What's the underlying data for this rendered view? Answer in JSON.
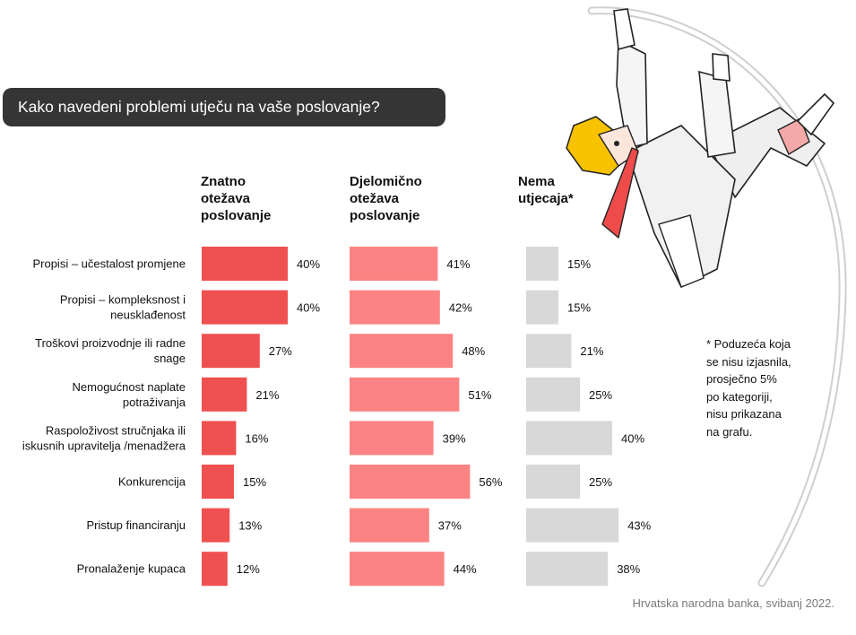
{
  "title": "Kako navedeni problemi utječu na vaše poslovanje?",
  "columns": [
    {
      "lines": [
        "Znatno",
        "otežava",
        "poslovanje"
      ],
      "color": "#ef5050"
    },
    {
      "lines": [
        "Djelomično",
        "otežava",
        "poslovanje"
      ],
      "color": "#fc8383"
    },
    {
      "lines": [
        "Nema",
        "utjecaja*"
      ],
      "color": "#d8d8d8"
    }
  ],
  "footnote_lines": [
    "* Poduzeća koja",
    "se nisu izjasnila,",
    "prosječno 5%",
    "po kategoriji,",
    "nisu prikazana",
    "na grafu."
  ],
  "source": "Hrvatska narodna banka, svibanj 2022.",
  "illustration_icon": "pole-vaulter-businessman-icon",
  "chart_data": {
    "type": "bar",
    "orientation": "horizontal",
    "title": "Kako navedeni problemi utječu na vaše poslovanje?",
    "categories": [
      [
        "Propisi – učestalost promjene"
      ],
      [
        "Propisi – kompleksnost i",
        "neusklađenost"
      ],
      [
        "Troškovi proizvodnje ili radne",
        "snage"
      ],
      [
        "Nemogućnost naplate",
        "potraživanja"
      ],
      [
        "Raspoloživost stručnjaka ili",
        "iskusnih upravitelja /menadžera"
      ],
      [
        "Konkurencija"
      ],
      [
        "Pristup financiranju"
      ],
      [
        "Pronalaženje kupaca"
      ]
    ],
    "series": [
      {
        "name": "Znatno otežava poslovanje",
        "values": [
          40,
          40,
          27,
          21,
          16,
          15,
          13,
          12
        ],
        "labels": [
          "40%",
          "40%",
          "27%",
          "21%",
          "16%",
          "15%",
          "13%",
          "12%"
        ],
        "color": "#ef5050"
      },
      {
        "name": "Djelomično otežava poslovanje",
        "values": [
          41,
          42,
          48,
          51,
          39,
          56,
          37,
          44
        ],
        "labels": [
          "41%",
          "42%",
          "48%",
          "51%",
          "39%",
          "56%",
          "37%",
          "44%"
        ],
        "color": "#fc8383"
      },
      {
        "name": "Nema utjecaja*",
        "values": [
          15,
          15,
          21,
          25,
          40,
          25,
          43,
          38
        ],
        "labels": [
          "15%",
          "15%",
          "21%",
          "25%",
          "40%",
          "25%",
          "43%",
          "38%"
        ],
        "color": "#d8d8d8"
      }
    ],
    "value_unit": "%",
    "grid": false,
    "legend": "column headers above bars"
  }
}
